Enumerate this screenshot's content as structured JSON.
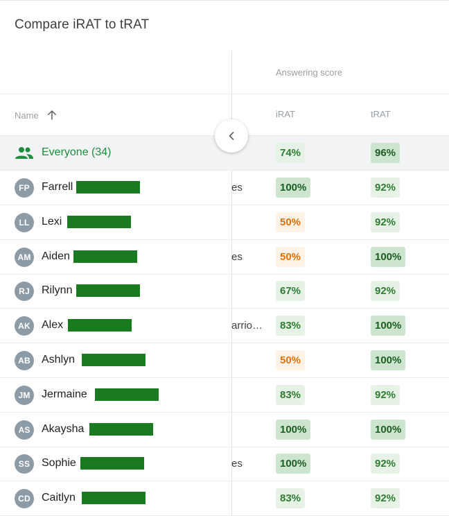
{
  "title": "Compare iRAT to tRAT",
  "group_header": "Answering score",
  "columns": {
    "name": "Name",
    "irat": "iRAT",
    "trat": "tRAT"
  },
  "everyone": {
    "label": "Everyone (34)",
    "irat": "74%",
    "trat": "96%"
  },
  "rows": [
    {
      "initials": "FP",
      "name": "Farrell",
      "extra": "es",
      "irat": "100%",
      "irat_style": "dark",
      "trat": "92%",
      "trat_style": "light"
    },
    {
      "initials": "LL",
      "name": "Lexi",
      "extra": "",
      "irat": "50%",
      "irat_style": "orange",
      "trat": "92%",
      "trat_style": "light"
    },
    {
      "initials": "AM",
      "name": "Aiden",
      "extra": "es",
      "irat": "50%",
      "irat_style": "orange",
      "trat": "100%",
      "trat_style": "dark"
    },
    {
      "initials": "RJ",
      "name": "Rilynn",
      "extra": "",
      "irat": "67%",
      "irat_style": "light",
      "trat": "92%",
      "trat_style": "light"
    },
    {
      "initials": "AK",
      "name": "Alex",
      "extra": "arrio…",
      "irat": "83%",
      "irat_style": "light",
      "trat": "100%",
      "trat_style": "dark"
    },
    {
      "initials": "AB",
      "name": "Ashlyn",
      "extra": "",
      "irat": "50%",
      "irat_style": "orange",
      "trat": "100%",
      "trat_style": "dark"
    },
    {
      "initials": "JM",
      "name": "Jermaine",
      "extra": "",
      "irat": "83%",
      "irat_style": "light",
      "trat": "92%",
      "trat_style": "light"
    },
    {
      "initials": "AS",
      "name": "Akaysha",
      "extra": "",
      "irat": "100%",
      "irat_style": "dark",
      "trat": "100%",
      "trat_style": "dark"
    },
    {
      "initials": "SS",
      "name": "Sophie",
      "extra": "es",
      "irat": "100%",
      "irat_style": "dark",
      "trat": "92%",
      "trat_style": "light"
    },
    {
      "initials": "CD",
      "name": "Caitlyn",
      "extra": "",
      "irat": "83%",
      "irat_style": "light",
      "trat": "92%",
      "trat_style": "light"
    }
  ],
  "icons": {
    "sort": "arrow-up-icon",
    "group": "group-icon",
    "collapse": "chevron-left-icon"
  },
  "colors": {
    "accent_green": "#1e8e3e",
    "score_dark_bg": "#cde5cf",
    "score_light_bg": "#e6f2e6",
    "score_orange": "#e8710a"
  }
}
